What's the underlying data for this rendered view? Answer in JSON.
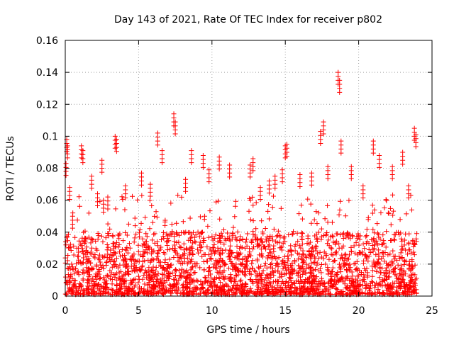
{
  "chart_data": {
    "type": "scatter",
    "title": "Day 143 of 2021, Rate Of TEC Index for receiver p802",
    "xlabel": "GPS time / hours",
    "ylabel": "ROTI / TECUs",
    "xlim": [
      0,
      25
    ],
    "ylim": [
      0,
      0.16
    ],
    "xticks": [
      0,
      5,
      10,
      15,
      20,
      25
    ],
    "xtick_labels": [
      "0",
      "5",
      "10",
      "15",
      "20",
      "25"
    ],
    "yticks": [
      0,
      0.02,
      0.04,
      0.06,
      0.08,
      0.1,
      0.12,
      0.14,
      0.16
    ],
    "ytick_labels": [
      "0",
      "0.02",
      "0.04",
      "0.06",
      "0.08",
      "0.1",
      "0.12",
      "0.14",
      "0.16"
    ],
    "grid": true,
    "marker": "+",
    "series": [
      {
        "name": "ROTI",
        "color": "#ff0000",
        "x": [
          0.05,
          0.1,
          0.15,
          0.3,
          0.5,
          0.9,
          1.1,
          1.2,
          1.8,
          2.2,
          2.5,
          2.6,
          2.9,
          3.4,
          3.5,
          4.1,
          5.2,
          5.8,
          6.3,
          6.6,
          7.4,
          7.5,
          8.2,
          8.6,
          9.4,
          9.8,
          10.5,
          11.2,
          12.6,
          12.8,
          13.3,
          13.9,
          14.3,
          14.8,
          15.0,
          15.1,
          16.0,
          16.8,
          17.4,
          17.6,
          17.9,
          18.6,
          18.7,
          18.8,
          19.5,
          20.3,
          21.0,
          21.4,
          22.3,
          23.0,
          23.4,
          23.8,
          23.9
        ],
        "y": [
          0.083,
          0.098,
          0.094,
          0.068,
          0.05,
          0.03,
          0.094,
          0.091,
          0.075,
          0.064,
          0.085,
          0.06,
          0.062,
          0.1,
          0.098,
          0.069,
          0.077,
          0.07,
          0.102,
          0.091,
          0.114,
          0.109,
          0.073,
          0.091,
          0.088,
          0.079,
          0.087,
          0.082,
          0.082,
          0.086,
          0.068,
          0.072,
          0.075,
          0.079,
          0.094,
          0.095,
          0.076,
          0.077,
          0.103,
          0.109,
          0.081,
          0.14,
          0.135,
          0.097,
          0.081,
          0.069,
          0.097,
          0.088,
          0.081,
          0.09,
          0.069,
          0.105,
          0.101
        ]
      }
    ],
    "dense_band": {
      "x_range": [
        0,
        24
      ],
      "typical_y_range": [
        0.001,
        0.04
      ]
    }
  }
}
